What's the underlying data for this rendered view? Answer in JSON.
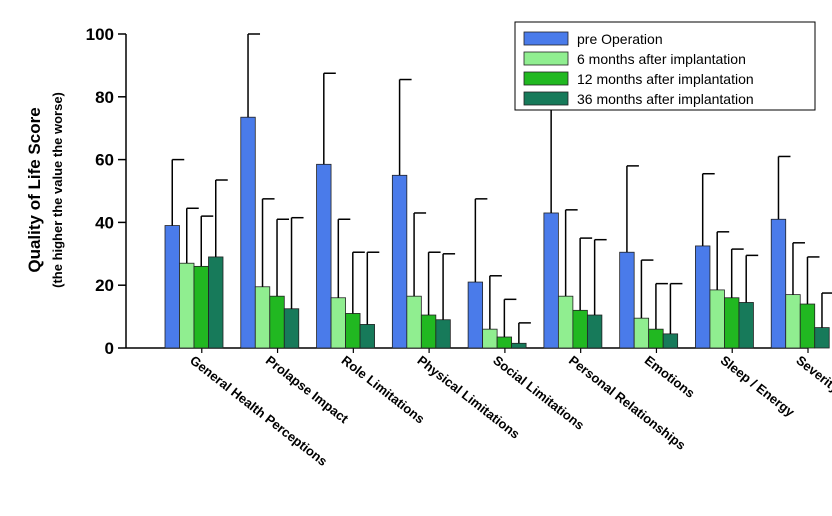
{
  "chart_data": {
    "type": "bar",
    "ylabel": "Quality of Life Score",
    "ylabel_sub": "(the higher the value the worse)",
    "ylim": [
      0,
      100
    ],
    "yticks": [
      0,
      20,
      40,
      60,
      80,
      100
    ],
    "legend_position": "top-right",
    "error_bars": true,
    "categories": [
      "General Health Perceptions",
      "Prolapse Impact",
      "Role Limitations",
      "Physical Limitations",
      "Social Limitations",
      "Personal Relationships",
      "Emotions",
      "Sleep / Energy",
      "Severity Measures"
    ],
    "series": [
      {
        "name": "pre Operation",
        "color": "#4a7bea",
        "values": [
          39,
          73.5,
          58.5,
          55,
          21,
          43,
          30.5,
          32.5,
          41
        ],
        "errors": [
          21,
          26.5,
          29,
          30.5,
          26.5,
          38,
          27.5,
          23,
          20
        ]
      },
      {
        "name": "6 months after implantation",
        "color": "#90ee90",
        "values": [
          27,
          19.5,
          16,
          16.5,
          6,
          16.5,
          9.5,
          18.5,
          17
        ],
        "errors": [
          17.5,
          28,
          25,
          26.5,
          17,
          27.5,
          18.5,
          18.5,
          16.5
        ]
      },
      {
        "name": "12 months after implantation",
        "color": "#21b821",
        "values": [
          26,
          16.5,
          11,
          10.5,
          3.5,
          12,
          6,
          16,
          14
        ],
        "errors": [
          16,
          24.5,
          19.5,
          20,
          12,
          23,
          14.5,
          15.5,
          15
        ]
      },
      {
        "name": "36 months after implantation",
        "color": "#177a5a",
        "values": [
          29,
          12.5,
          7.5,
          9,
          1.5,
          10.5,
          4.5,
          14.5,
          6.5
        ],
        "errors": [
          24.5,
          29,
          23,
          21,
          6.5,
          24,
          16,
          15,
          11
        ]
      }
    ]
  }
}
